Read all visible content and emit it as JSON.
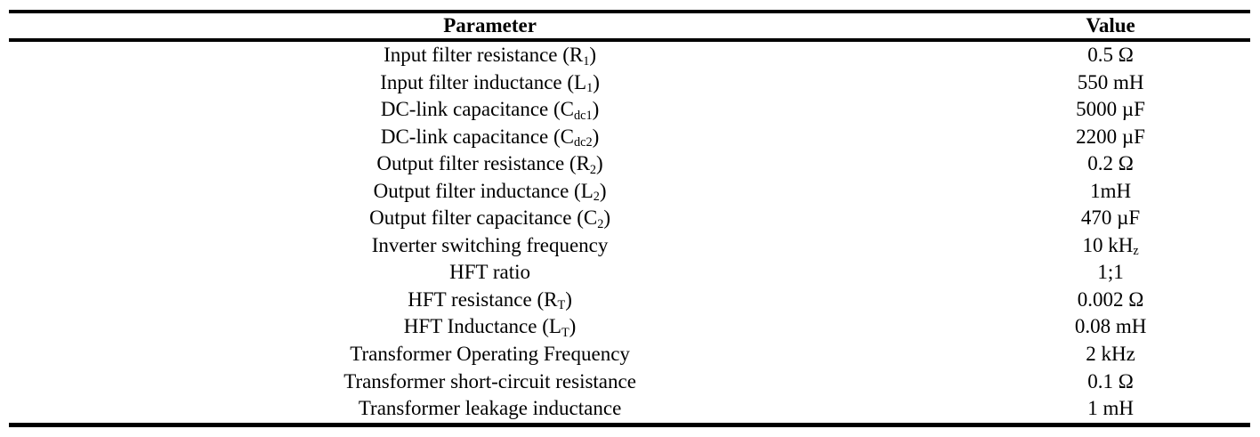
{
  "table": {
    "headers": {
      "parameter": "Parameter",
      "value": "Value"
    },
    "rows": [
      {
        "parameter": "Input filter resistance (R~1~)",
        "value": "0.5 Ω"
      },
      {
        "parameter": "Input filter inductance (L~1~)",
        "value": "550 mH"
      },
      {
        "parameter": "DC-link capacitance (C~dc1~)",
        "value": "5000 µF"
      },
      {
        "parameter": "DC-link capacitance (C~dc2~)",
        "value": "2200 µF"
      },
      {
        "parameter": "Output filter resistance (R~2~)",
        "value": "0.2 Ω"
      },
      {
        "parameter": "Output filter inductance (L~2~)",
        "value": "1mH"
      },
      {
        "parameter": "Output filter capacitance (C~2~)",
        "value": "470 µF"
      },
      {
        "parameter": "Inverter switching frequency",
        "value": "10 kH~z~"
      },
      {
        "parameter": "HFT ratio",
        "value": "1;1"
      },
      {
        "parameter": "HFT resistance (R~T~)",
        "value": "0.002 Ω"
      },
      {
        "parameter": "HFT Inductance (L~T~)",
        "value": "0.08 mH"
      },
      {
        "parameter": "Transformer Operating Frequency",
        "value": "2 kHz"
      },
      {
        "parameter": "Transformer short-circuit resistance",
        "value": "0.1 Ω"
      },
      {
        "parameter": "Transformer leakage inductance",
        "value": "1 mH"
      }
    ]
  }
}
